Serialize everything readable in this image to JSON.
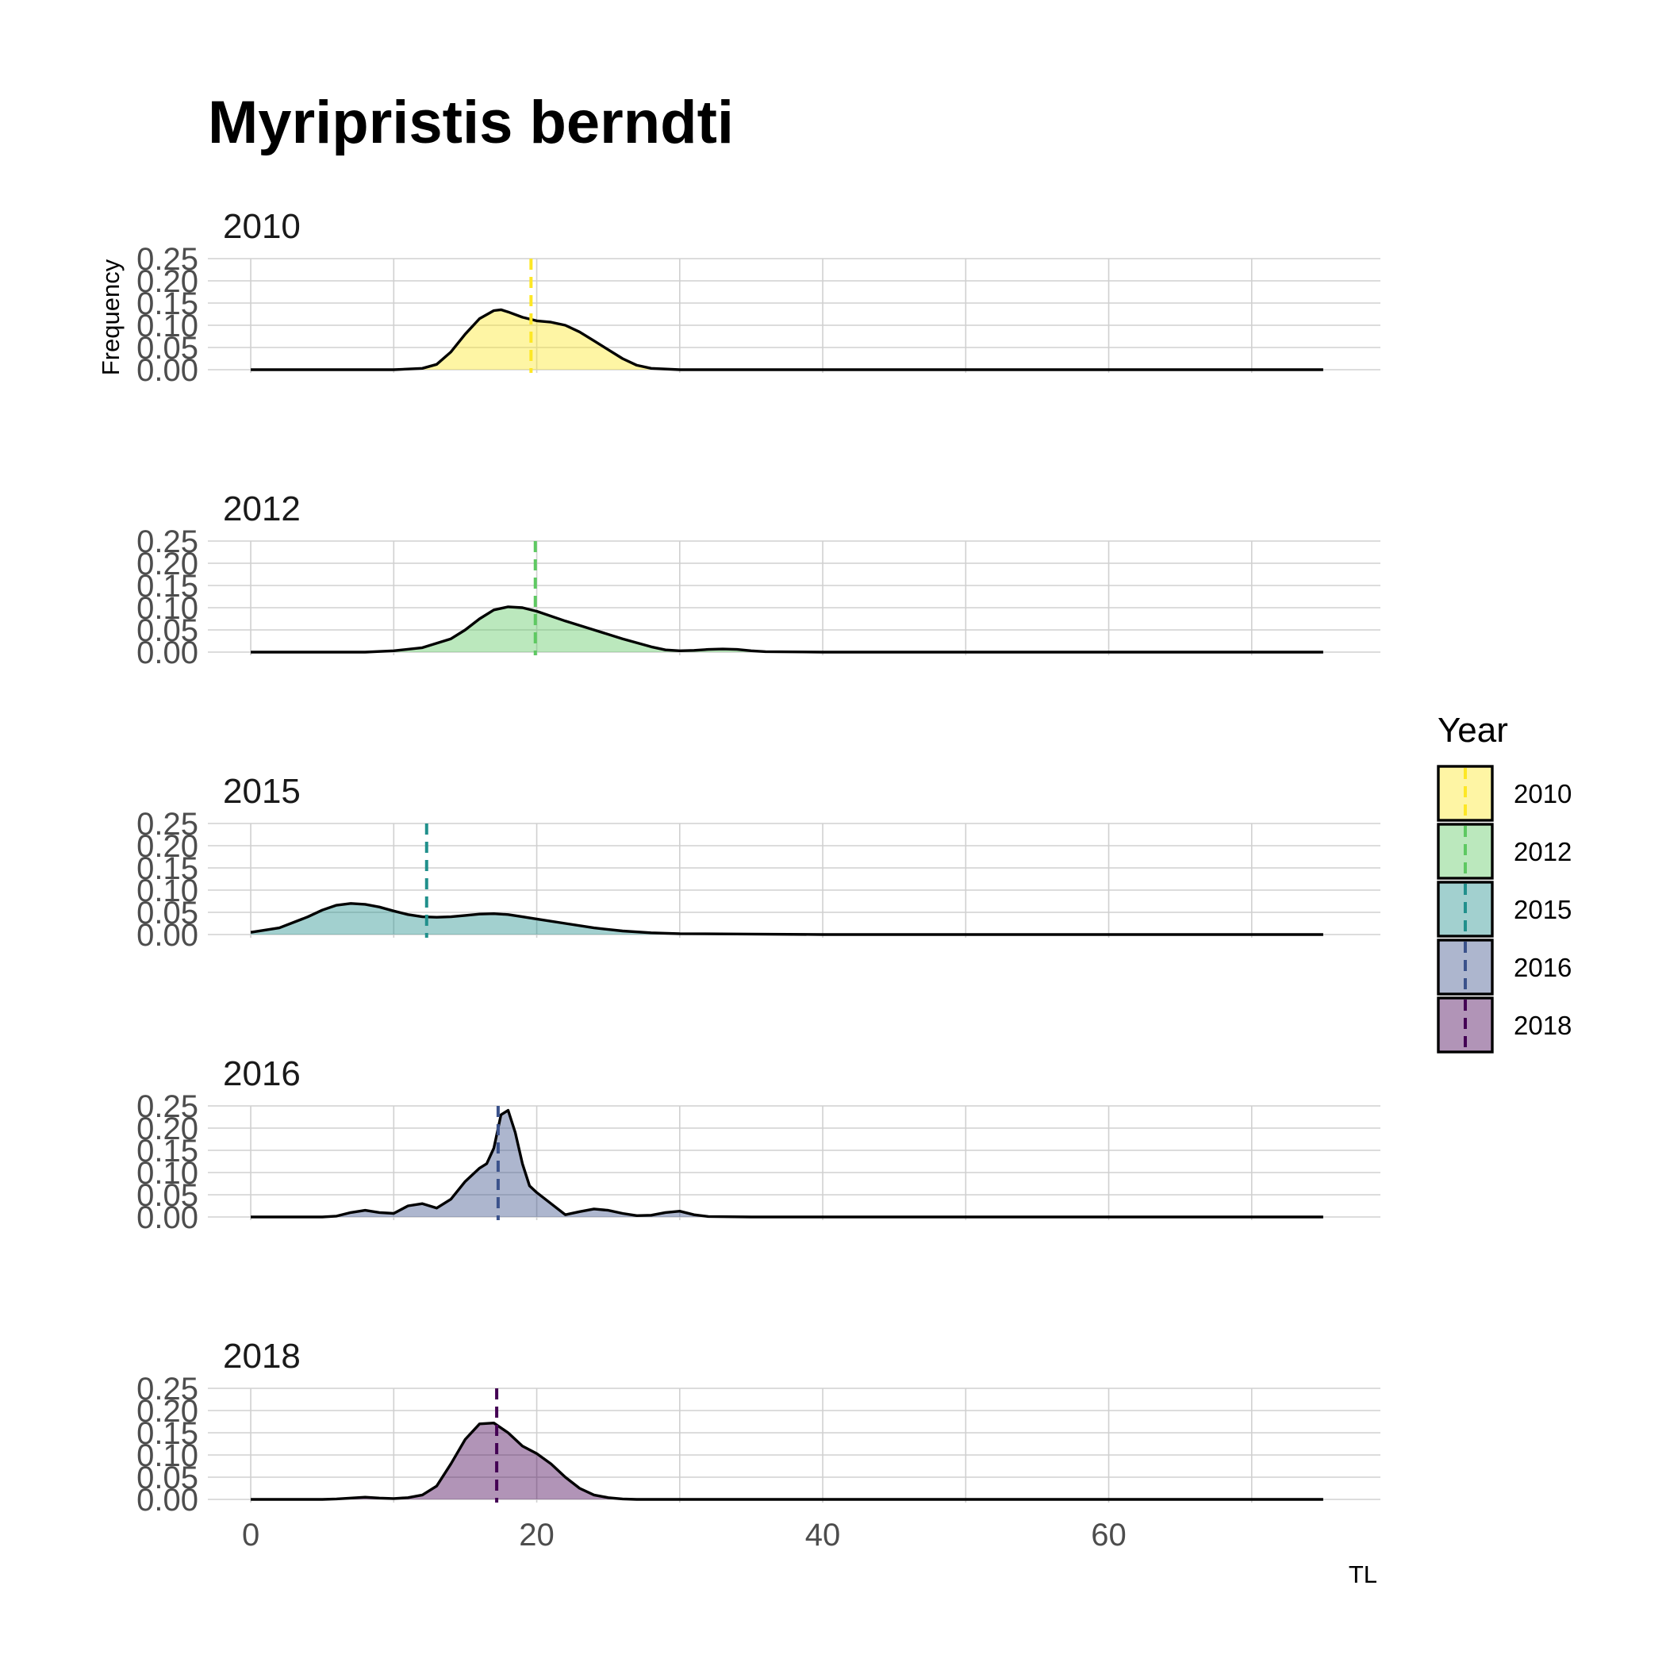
{
  "chart_data": {
    "type": "area",
    "title": "Myripristis berndti",
    "xlabel": "TL",
    "ylabel": "Frequency",
    "xlim": [
      -3,
      79
    ],
    "ylim": [
      0,
      0.25
    ],
    "x_ticks": [
      0,
      20,
      40,
      60
    ],
    "x_tick_labels": [
      "0",
      "20",
      "40",
      "60"
    ],
    "x_minor_grid": [
      10,
      30,
      50,
      70
    ],
    "y_ticks": [
      0,
      0.05,
      0.1,
      0.15,
      0.2,
      0.25
    ],
    "y_tick_labels": [
      "0.00",
      "0.05",
      "0.10",
      "0.15",
      "0.20",
      "0.25"
    ],
    "grid": true,
    "legend": {
      "title": "Year",
      "position": "right",
      "entries": [
        "2010",
        "2012",
        "2015",
        "2016",
        "2018"
      ]
    },
    "panels": [
      {
        "label": "2010",
        "color": "#FDE725",
        "mean": 19.6,
        "x": [
          0,
          10,
          12,
          13,
          14,
          15,
          16,
          17,
          17.5,
          18,
          19,
          20,
          21,
          22,
          23,
          24,
          25,
          26,
          27,
          28,
          30,
          40,
          75
        ],
        "y": [
          0,
          0,
          0.003,
          0.012,
          0.04,
          0.08,
          0.115,
          0.133,
          0.135,
          0.13,
          0.118,
          0.11,
          0.107,
          0.1,
          0.085,
          0.065,
          0.045,
          0.025,
          0.01,
          0.003,
          0,
          0,
          0
        ]
      },
      {
        "label": "2012",
        "color": "#5EC962",
        "mean": 19.9,
        "x": [
          0,
          8,
          10,
          12,
          14,
          15,
          16,
          17,
          18,
          19,
          20,
          22,
          24,
          26,
          28,
          29,
          30,
          31,
          32,
          33,
          34,
          35,
          36,
          40,
          75
        ],
        "y": [
          0,
          0,
          0.003,
          0.01,
          0.03,
          0.05,
          0.075,
          0.095,
          0.102,
          0.1,
          0.092,
          0.07,
          0.05,
          0.03,
          0.012,
          0.005,
          0.003,
          0.004,
          0.006,
          0.007,
          0.006,
          0.003,
          0.001,
          0,
          0
        ]
      },
      {
        "label": "2015",
        "color": "#21908C",
        "mean": 12.3,
        "x": [
          0,
          2,
          4,
          5,
          6,
          7,
          8,
          9,
          10,
          11,
          12,
          13,
          14,
          15,
          16,
          17,
          18,
          19,
          20,
          22,
          24,
          26,
          28,
          30,
          35,
          40,
          75
        ],
        "y": [
          0.005,
          0.015,
          0.04,
          0.055,
          0.066,
          0.07,
          0.068,
          0.062,
          0.053,
          0.045,
          0.04,
          0.039,
          0.04,
          0.043,
          0.046,
          0.047,
          0.045,
          0.04,
          0.035,
          0.025,
          0.015,
          0.008,
          0.004,
          0.002,
          0.001,
          0,
          0
        ]
      },
      {
        "label": "2016",
        "color": "#3B528B",
        "mean": 17.3,
        "x": [
          0,
          5,
          6,
          7,
          8,
          9,
          10,
          11,
          12,
          13,
          14,
          15,
          16,
          16.5,
          17,
          17.5,
          18,
          18.5,
          19,
          19.5,
          20,
          21,
          22,
          23,
          24,
          25,
          26,
          27,
          28,
          29,
          30,
          31,
          32,
          35,
          75
        ],
        "y": [
          0,
          0,
          0.002,
          0.01,
          0.015,
          0.01,
          0.008,
          0.025,
          0.03,
          0.02,
          0.04,
          0.08,
          0.11,
          0.12,
          0.155,
          0.23,
          0.24,
          0.19,
          0.12,
          0.07,
          0.055,
          0.03,
          0.005,
          0.012,
          0.018,
          0.015,
          0.008,
          0.003,
          0.004,
          0.01,
          0.013,
          0.005,
          0.001,
          0,
          0
        ]
      },
      {
        "label": "2018",
        "color": "#440154",
        "mean": 17.2,
        "x": [
          0,
          5,
          6,
          7,
          8,
          9,
          10,
          11,
          12,
          13,
          14,
          15,
          16,
          17,
          18,
          19,
          20,
          21,
          22,
          23,
          24,
          25,
          26,
          27,
          30,
          75
        ],
        "y": [
          0,
          0,
          0.001,
          0.003,
          0.005,
          0.003,
          0.002,
          0.004,
          0.01,
          0.03,
          0.08,
          0.135,
          0.17,
          0.172,
          0.15,
          0.12,
          0.103,
          0.08,
          0.05,
          0.025,
          0.01,
          0.004,
          0.001,
          0,
          0,
          0
        ]
      }
    ]
  }
}
